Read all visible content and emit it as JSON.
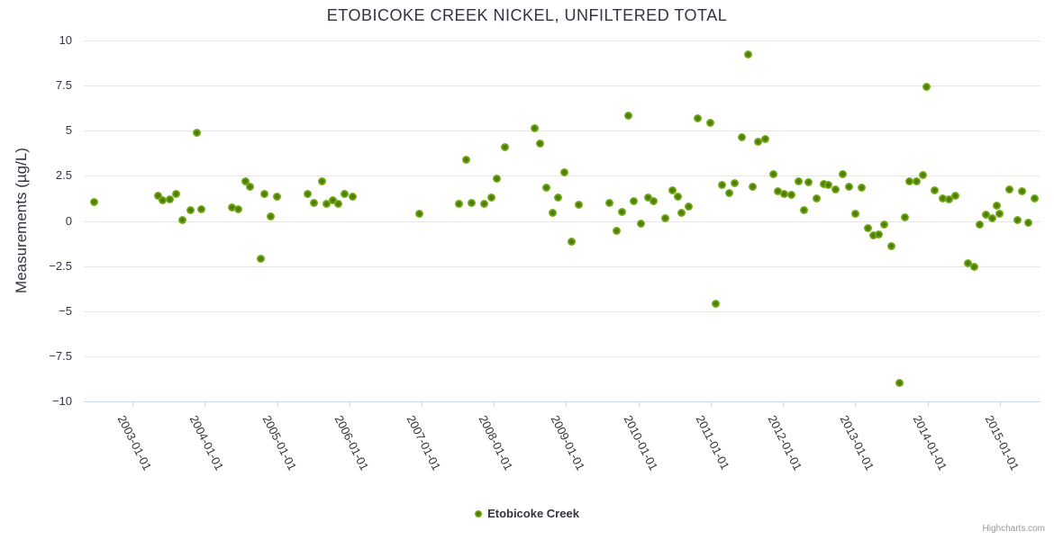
{
  "chart": {
    "title": "ETOBICOKE CREEK NICKEL, UNFILTERED TOTAL",
    "legend": {
      "label": "Etobicoke Creek"
    },
    "credits": "Highcharts.com"
  },
  "chart_data": {
    "type": "scatter",
    "title": "ETOBICOKE CREEK NICKEL, UNFILTERED TOTAL",
    "xlabel": "",
    "ylabel": "Measurements (µg/L)",
    "grid": "horizontal-only",
    "legend_position": "bottom-center",
    "colors": {
      "marker_outer": "#7cb41e",
      "marker_inner": "#466f04",
      "gridline": "#e6e6e6",
      "axis_line": "#ccd6eb",
      "text": "#333340",
      "credits_text": "#999999"
    },
    "x_axis": {
      "type": "datetime",
      "xlim": [
        2002.327,
        2015.561
      ],
      "tick_years": [
        2003,
        2004,
        2005,
        2006,
        2007,
        2008,
        2009,
        2010,
        2011,
        2012,
        2013,
        2014,
        2015
      ],
      "tick_labels": [
        "2003-01-01",
        "2004-01-01",
        "2005-01-01",
        "2006-01-01",
        "2007-01-01",
        "2008-01-01",
        "2009-01-01",
        "2010-01-01",
        "2011-01-01",
        "2012-01-01",
        "2013-01-01",
        "2014-01-01",
        "2015-01-01"
      ]
    },
    "y_axis": {
      "ylim": [
        -10,
        10
      ],
      "tick_values": [
        10,
        7.5,
        5,
        2.5,
        0,
        -2.5,
        -5,
        -7.5,
        -10
      ],
      "tick_labels": [
        "10",
        "7.5",
        "5",
        "2.5",
        "0",
        "−2.5",
        "−5",
        "−7.5",
        "−10"
      ]
    },
    "series": [
      {
        "name": "Etobicoke Creek",
        "points": [
          [
            2002.47,
            1.05
          ],
          [
            2003.36,
            1.4
          ],
          [
            2003.42,
            1.15
          ],
          [
            2003.52,
            1.2
          ],
          [
            2003.61,
            1.5
          ],
          [
            2003.69,
            0.05
          ],
          [
            2003.8,
            0.6
          ],
          [
            2003.89,
            4.9
          ],
          [
            2003.95,
            0.65
          ],
          [
            2004.38,
            0.75
          ],
          [
            2004.46,
            0.65
          ],
          [
            2004.57,
            2.2
          ],
          [
            2004.63,
            1.9
          ],
          [
            2004.77,
            -2.1
          ],
          [
            2004.82,
            1.5
          ],
          [
            2004.91,
            0.25
          ],
          [
            2005.0,
            1.35
          ],
          [
            2005.42,
            1.5
          ],
          [
            2005.51,
            1.0
          ],
          [
            2005.62,
            2.2
          ],
          [
            2005.68,
            0.95
          ],
          [
            2005.77,
            1.15
          ],
          [
            2005.85,
            0.95
          ],
          [
            2005.94,
            1.5
          ],
          [
            2006.05,
            1.35
          ],
          [
            2006.97,
            0.4
          ],
          [
            2007.52,
            0.95
          ],
          [
            2007.62,
            3.4
          ],
          [
            2007.69,
            1.0
          ],
          [
            2007.87,
            0.95
          ],
          [
            2007.97,
            1.3
          ],
          [
            2008.04,
            2.35
          ],
          [
            2008.15,
            4.1
          ],
          [
            2008.57,
            5.15
          ],
          [
            2008.64,
            4.3
          ],
          [
            2008.72,
            1.85
          ],
          [
            2008.81,
            0.45
          ],
          [
            2008.89,
            1.3
          ],
          [
            2008.98,
            2.7
          ],
          [
            2009.07,
            -1.15
          ],
          [
            2009.17,
            0.9
          ],
          [
            2009.6,
            1.0
          ],
          [
            2009.7,
            -0.55
          ],
          [
            2009.77,
            0.5
          ],
          [
            2009.86,
            5.85
          ],
          [
            2009.93,
            1.1
          ],
          [
            2010.04,
            -0.15
          ],
          [
            2010.13,
            1.3
          ],
          [
            2010.21,
            1.1
          ],
          [
            2010.37,
            0.15
          ],
          [
            2010.47,
            1.7
          ],
          [
            2010.54,
            1.35
          ],
          [
            2010.6,
            0.45
          ],
          [
            2010.7,
            0.8
          ],
          [
            2010.82,
            5.7
          ],
          [
            2010.99,
            5.45
          ],
          [
            2011.07,
            -4.6
          ],
          [
            2011.15,
            2.0
          ],
          [
            2011.26,
            1.55
          ],
          [
            2011.33,
            2.1
          ],
          [
            2011.43,
            4.65
          ],
          [
            2011.52,
            9.25
          ],
          [
            2011.58,
            1.9
          ],
          [
            2011.66,
            4.4
          ],
          [
            2011.75,
            4.55
          ],
          [
            2011.86,
            2.6
          ],
          [
            2011.93,
            1.65
          ],
          [
            2012.02,
            1.5
          ],
          [
            2012.11,
            1.45
          ],
          [
            2012.21,
            2.2
          ],
          [
            2012.29,
            0.6
          ],
          [
            2012.35,
            2.15
          ],
          [
            2012.47,
            1.25
          ],
          [
            2012.56,
            2.05
          ],
          [
            2012.63,
            2.0
          ],
          [
            2012.73,
            1.75
          ],
          [
            2012.82,
            2.6
          ],
          [
            2012.91,
            1.9
          ],
          [
            2013.0,
            0.4
          ],
          [
            2013.09,
            1.85
          ],
          [
            2013.18,
            -0.4
          ],
          [
            2013.25,
            -0.8
          ],
          [
            2013.33,
            -0.75
          ],
          [
            2013.4,
            -0.2
          ],
          [
            2013.5,
            -1.4
          ],
          [
            2013.61,
            -9.0
          ],
          [
            2013.69,
            0.2
          ],
          [
            2013.75,
            2.2
          ],
          [
            2013.85,
            2.2
          ],
          [
            2013.94,
            2.55
          ],
          [
            2013.99,
            7.45
          ],
          [
            2014.1,
            1.7
          ],
          [
            2014.21,
            1.25
          ],
          [
            2014.3,
            1.2
          ],
          [
            2014.38,
            1.4
          ],
          [
            2014.56,
            -2.35
          ],
          [
            2014.64,
            -2.55
          ],
          [
            2014.72,
            -0.2
          ],
          [
            2014.81,
            0.35
          ],
          [
            2014.89,
            0.15
          ],
          [
            2014.96,
            0.85
          ],
          [
            2015.0,
            0.4
          ],
          [
            2015.13,
            1.75
          ],
          [
            2015.24,
            0.05
          ],
          [
            2015.31,
            1.65
          ],
          [
            2015.39,
            -0.1
          ],
          [
            2015.48,
            1.25
          ]
        ]
      }
    ]
  }
}
